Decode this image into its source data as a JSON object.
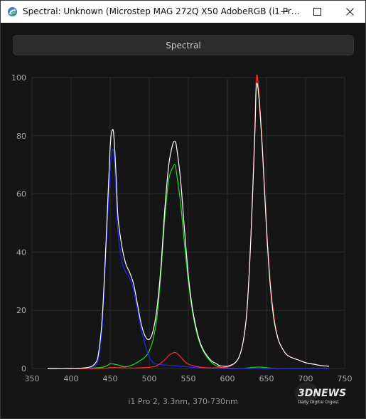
{
  "window": {
    "title": "Spectral: Unknown (Microstep MAG 272Q X50 AdobeRGB (i1 Pr…"
  },
  "controls": {
    "spectral_label": "Spectral"
  },
  "caption": "i1 Pro 2, 3.3nm, 370-730nm",
  "watermark": {
    "brand": "3DNEWS",
    "tagline": "Daily Digital Digest"
  },
  "colors": {
    "background": "#141414",
    "grid": "#2a2a2a",
    "white_series": "#ffffff",
    "red_series": "#ff2a2a",
    "green_series": "#22dd22",
    "blue_series": "#2222ff"
  },
  "chart_data": {
    "type": "line",
    "title": "",
    "xlabel": "",
    "ylabel": "",
    "xlim": [
      350,
      750
    ],
    "ylim": [
      0,
      100
    ],
    "x_ticks": [
      350,
      400,
      450,
      500,
      550,
      600,
      650,
      700,
      750
    ],
    "y_ticks": [
      0,
      20,
      40,
      60,
      80,
      100
    ],
    "grid": true,
    "series": [
      {
        "color": "#ffffff",
        "x": [
          370,
          400,
          420,
          430,
          435,
          440,
          445,
          450,
          453,
          455,
          458,
          460,
          465,
          470,
          475,
          480,
          485,
          490,
          495,
          500,
          505,
          510,
          515,
          520,
          525,
          530,
          533,
          535,
          540,
          545,
          550,
          555,
          560,
          565,
          570,
          575,
          580,
          585,
          590,
          595,
          600,
          605,
          610,
          615,
          620,
          625,
          630,
          635,
          637,
          640,
          645,
          650,
          655,
          660,
          665,
          670,
          675,
          680,
          690,
          700,
          710,
          720,
          730
        ],
        "y": [
          0,
          0,
          0.3,
          1.5,
          5,
          18,
          45,
          76,
          82,
          79,
          64,
          52,
          42,
          36,
          33,
          29,
          22,
          15,
          11,
          10,
          13,
          21,
          35,
          55,
          70,
          77,
          78,
          76,
          65,
          48,
          32,
          21,
          14,
          9,
          6,
          4,
          2.5,
          1.8,
          1,
          0.8,
          0.8,
          1.2,
          2,
          4,
          9,
          20,
          45,
          80,
          97,
          94,
          74,
          48,
          28,
          16,
          10,
          7,
          5,
          4,
          3,
          2,
          1.5,
          1,
          0.8
        ]
      },
      {
        "color": "#ff2a2a",
        "x": [
          370,
          400,
          440,
          450,
          460,
          480,
          500,
          510,
          520,
          525,
          530,
          533,
          535,
          540,
          545,
          550,
          560,
          570,
          580,
          590,
          600,
          605,
          610,
          615,
          620,
          625,
          630,
          635,
          637,
          640,
          645,
          650,
          655,
          660,
          665,
          670,
          675,
          680,
          690,
          700,
          710,
          720,
          730
        ],
        "y": [
          0,
          0,
          0,
          0.3,
          0.3,
          0.2,
          0.4,
          1,
          3,
          4.5,
          5.3,
          5.5,
          5.3,
          4,
          2.5,
          1.5,
          0.7,
          0.3,
          0.2,
          0.3,
          0.5,
          1,
          2,
          4,
          9,
          20,
          45,
          82,
          100,
          96,
          75,
          49,
          29,
          17,
          10,
          7,
          5,
          4,
          3,
          2,
          1.5,
          1,
          0.8
        ]
      },
      {
        "color": "#22dd22",
        "x": [
          370,
          400,
          430,
          440,
          445,
          450,
          455,
          460,
          465,
          470,
          480,
          490,
          495,
          500,
          505,
          510,
          515,
          520,
          525,
          530,
          533,
          535,
          540,
          545,
          550,
          555,
          560,
          565,
          570,
          575,
          580,
          585,
          590,
          595,
          600,
          610,
          620,
          640,
          660,
          680,
          700,
          730
        ],
        "y": [
          0,
          0,
          0.2,
          0.4,
          0.8,
          1.6,
          1.5,
          1.2,
          0.8,
          0.6,
          1.4,
          3,
          4,
          6,
          10,
          18,
          33,
          52,
          65,
          69,
          70,
          67,
          57,
          43,
          30,
          20,
          13,
          8.5,
          5.5,
          3.5,
          2,
          1,
          0.5,
          0.2,
          0.1,
          0.1,
          0,
          0.5,
          0,
          0,
          0,
          0
        ]
      },
      {
        "color": "#2222ff",
        "x": [
          370,
          400,
          420,
          430,
          435,
          440,
          445,
          450,
          453,
          455,
          458,
          460,
          465,
          470,
          475,
          480,
          485,
          490,
          495,
          500,
          505,
          510,
          520,
          530,
          540,
          550,
          560,
          570,
          580,
          600,
          650,
          700,
          730
        ],
        "y": [
          0,
          0,
          0.2,
          1,
          3.5,
          15,
          42,
          68,
          75,
          73,
          58,
          47,
          37,
          33,
          31,
          27,
          20,
          13,
          8,
          4,
          2,
          1.5,
          1.2,
          1,
          0.8,
          0.5,
          0.3,
          0.2,
          0.1,
          0,
          0,
          0,
          0
        ]
      }
    ]
  }
}
